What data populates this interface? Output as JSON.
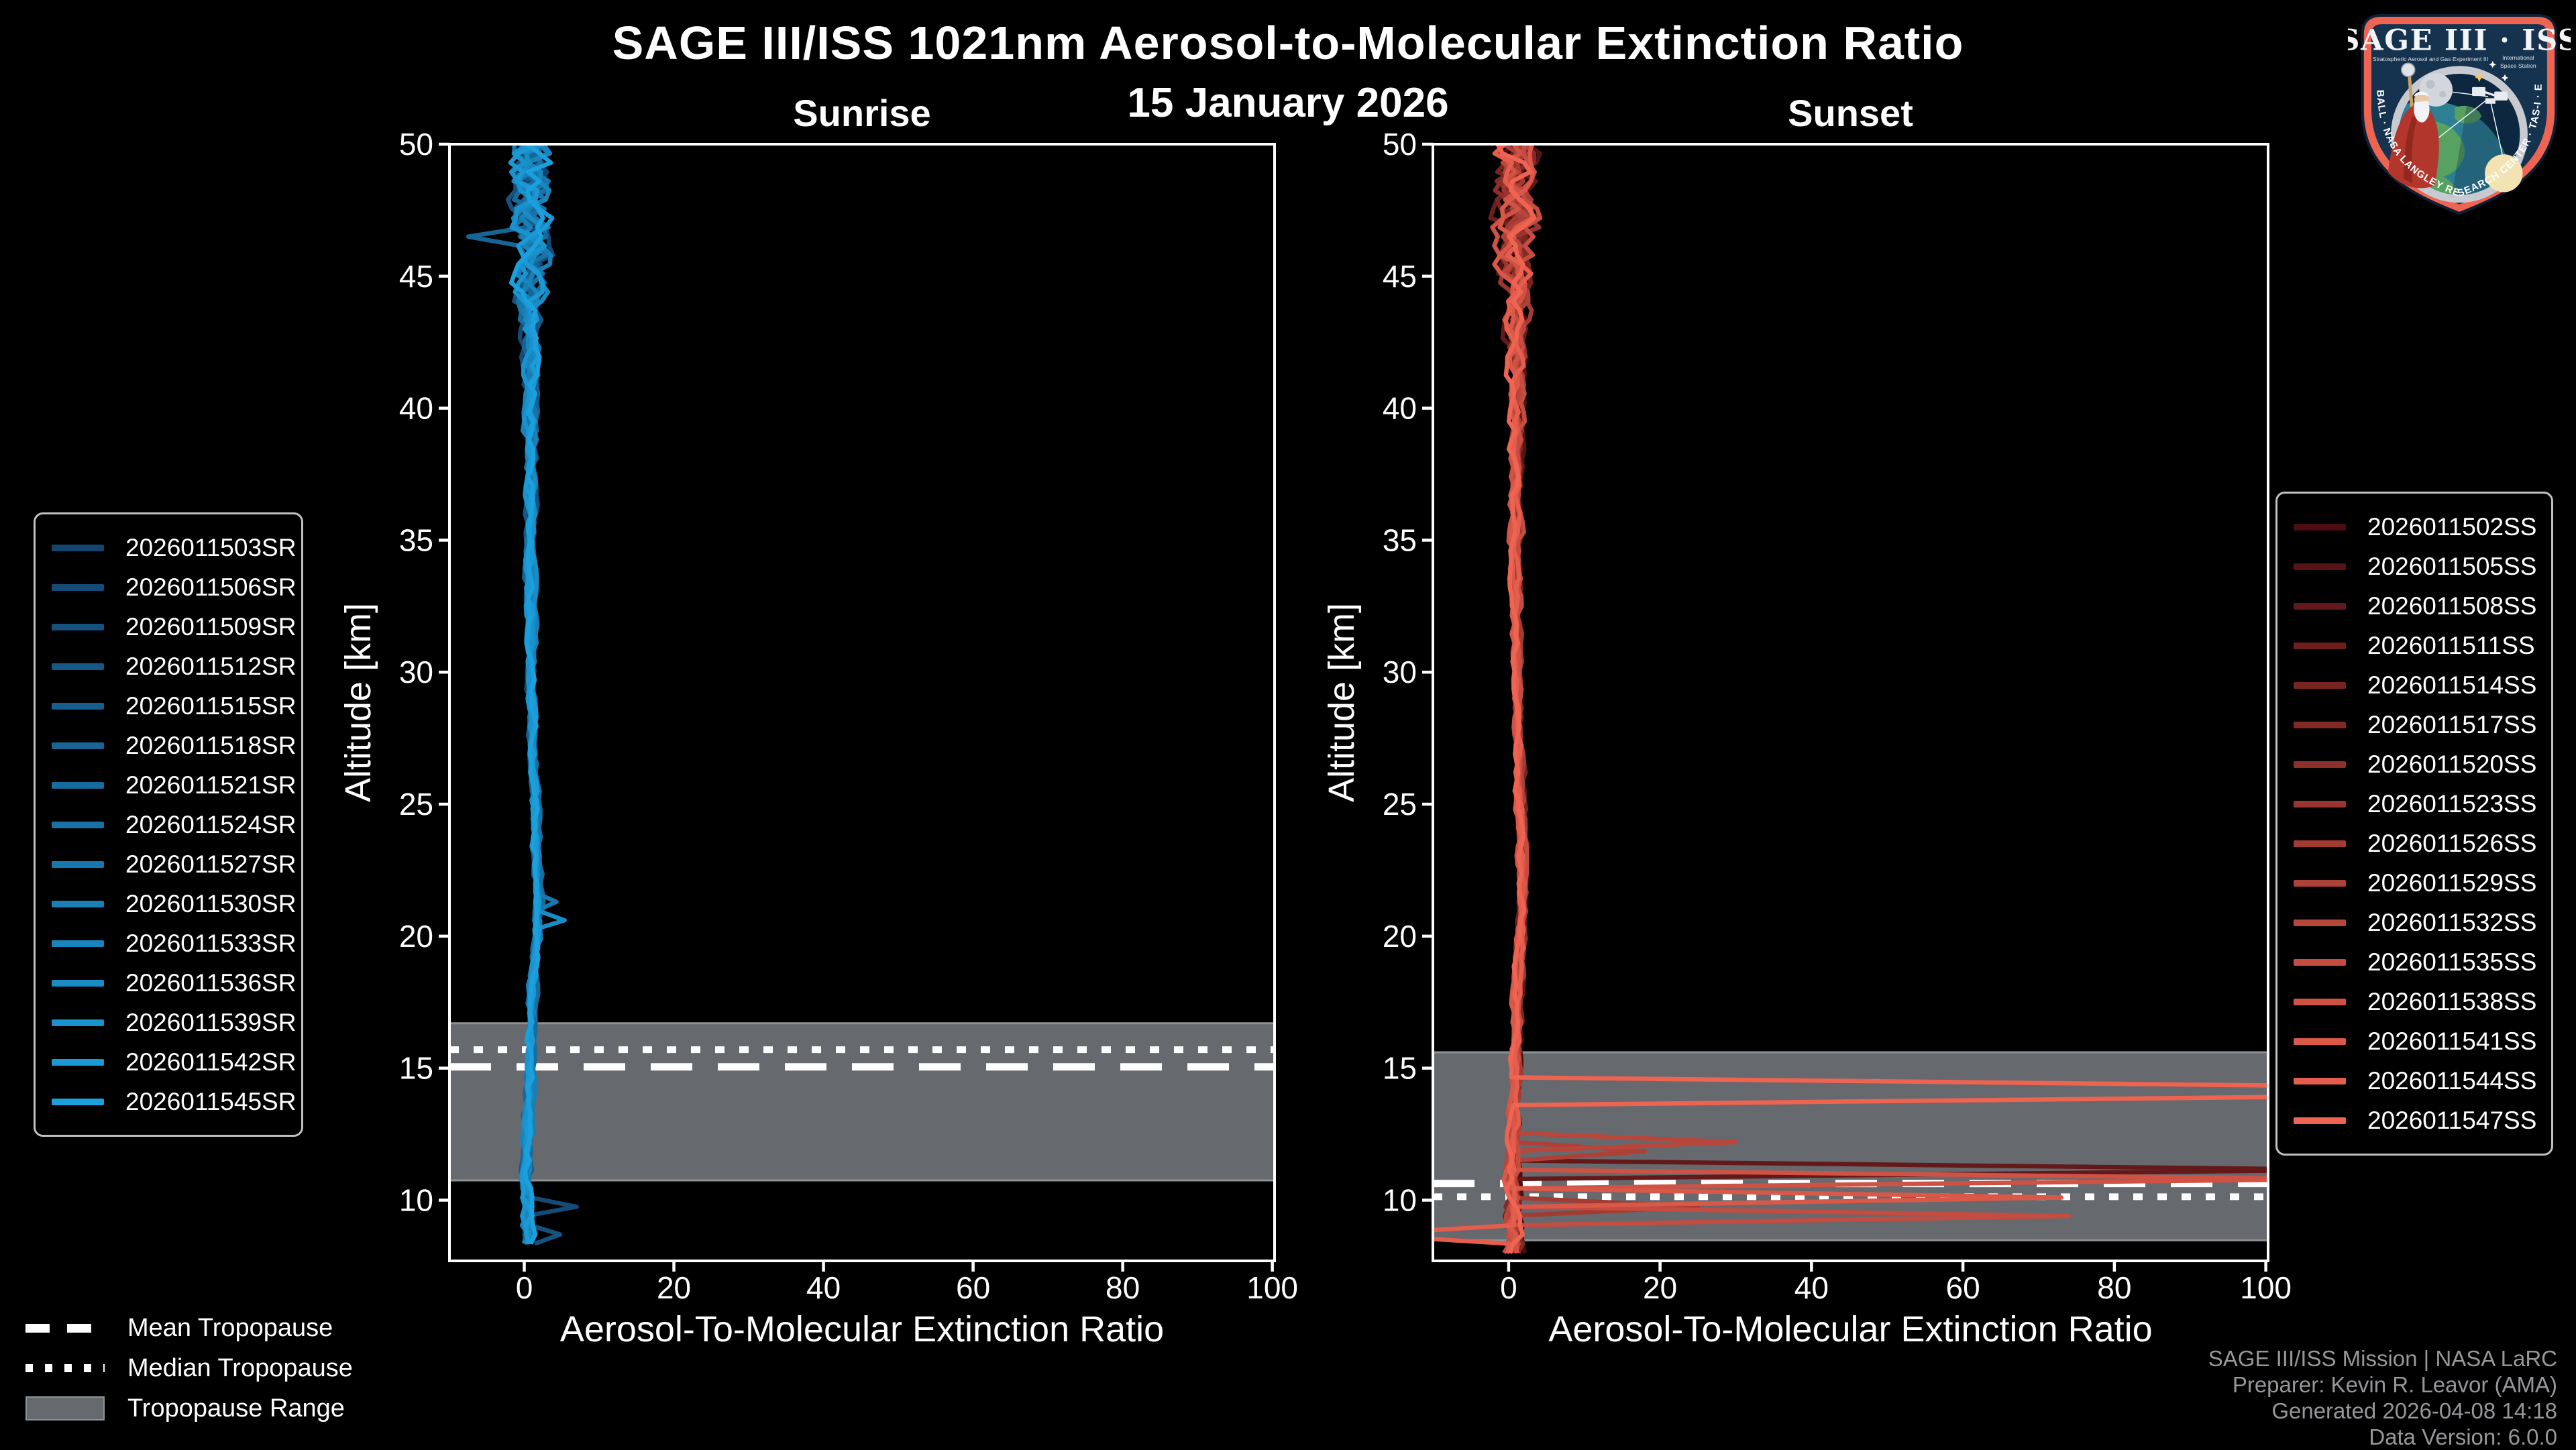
{
  "header": {
    "title": "SAGE III/ISS 1021nm Aerosol-to-Molecular Extinction Ratio",
    "subtitle": "15 January 2026"
  },
  "tropopause_legend": {
    "mean_label": "Mean Tropopause",
    "median_label": "Median Tropopause",
    "range_label": "Tropopause Range"
  },
  "footer": {
    "lines": [
      "SAGE III/ISS Mission | NASA LaRC",
      "Preparer: Kevin R. Leavor (AMA)",
      "Generated 2026-04-08 14:18",
      "Data Version: 6.0.0"
    ]
  },
  "logo": {
    "title": "SAGE III · ISS",
    "sub_left": "Stratospheric Aerosol and Gas Experiment III",
    "sub_right_1": "International",
    "sub_right_2": "Space Station",
    "border_text": "BALL · NASA LANGLEY RESEARCH CENTER · TAS-I · ESA"
  },
  "style": {
    "background": "#000000",
    "text_color": "#ffffff",
    "muted_text": "#95979a",
    "spine_color": "#ffffff",
    "band_color": "#66696e",
    "band_edge": "#8f9295",
    "legend_border": "#c0c1c3"
  },
  "chart_data": [
    {
      "type": "line",
      "title": "Sunrise",
      "xlabel": "Aerosol-To-Molecular Extinction Ratio",
      "ylabel": "Altitude [km]",
      "xlim": [
        -10,
        100.3
      ],
      "ylim": [
        7.7,
        50
      ],
      "xticks": [
        0,
        20,
        40,
        60,
        80,
        100
      ],
      "yticks": [
        10,
        15,
        20,
        25,
        30,
        35,
        40,
        45,
        50
      ],
      "grid": false,
      "legend_position": "left-outside",
      "color_ramp": [
        "#14456e",
        "#1b9fdd"
      ],
      "series": [
        "2026011503SR",
        "2026011506SR",
        "2026011509SR",
        "2026011512SR",
        "2026011515SR",
        "2026011518SR",
        "2026011521SR",
        "2026011524SR",
        "2026011527SR",
        "2026011530SR",
        "2026011533SR",
        "2026011536SR",
        "2026011539SR",
        "2026011542SR",
        "2026011545SR"
      ],
      "alt_min_km": 8.2,
      "tropopause": {
        "mean_km": 15.05,
        "median_km": 15.7,
        "range_km": [
          10.75,
          16.7
        ]
      },
      "profile_ratio_by_alt": [
        [
          8.2,
          0.4
        ],
        [
          9,
          0.5
        ],
        [
          10,
          0.5
        ],
        [
          11,
          0.4
        ],
        [
          12,
          0.45
        ],
        [
          13,
          0.5
        ],
        [
          14,
          0.6
        ],
        [
          15,
          0.7
        ],
        [
          16,
          0.8
        ],
        [
          17,
          0.95
        ],
        [
          18,
          1.1
        ],
        [
          19,
          1.4
        ],
        [
          20,
          1.7
        ],
        [
          21,
          1.9
        ],
        [
          22,
          1.8
        ],
        [
          23,
          1.6
        ],
        [
          24,
          1.5
        ],
        [
          25,
          1.4
        ],
        [
          27,
          1.2
        ],
        [
          30,
          1.0
        ],
        [
          33,
          0.9
        ],
        [
          36,
          0.9
        ],
        [
          39,
          0.9
        ],
        [
          42,
          1.0
        ],
        [
          44,
          1.0
        ],
        [
          46,
          1.0
        ],
        [
          48,
          1.0
        ],
        [
          50,
          1.0
        ]
      ],
      "noise_amp_by_alt": [
        [
          8.2,
          0.8
        ],
        [
          10,
          0.7
        ],
        [
          12,
          0.45
        ],
        [
          20,
          0.45
        ],
        [
          30,
          0.45
        ],
        [
          40,
          0.7
        ],
        [
          43,
          1.1
        ],
        [
          45,
          2.0
        ],
        [
          47,
          2.6
        ],
        [
          50,
          2.8
        ]
      ],
      "anomalies": [
        {
          "series": 1,
          "alt_range": [
            9.55,
            9.95
          ],
          "ratio": 7.0
        },
        {
          "series": 2,
          "alt_range": [
            8.55,
            8.95
          ],
          "ratio": 4.8
        },
        {
          "series": 11,
          "alt_range": [
            20.3,
            20.8
          ],
          "ratio": 5.4
        },
        {
          "series": 8,
          "alt_range": [
            21.0,
            21.4
          ],
          "ratio": 4.3
        },
        {
          "series": 5,
          "alt_range": [
            46.4,
            46.8
          ],
          "ratio": -7.5
        }
      ]
    },
    {
      "type": "line",
      "title": "Sunset",
      "xlabel": "Aerosol-To-Molecular Extinction Ratio",
      "ylabel": "Altitude [km]",
      "xlim": [
        -10,
        100.3
      ],
      "ylim": [
        7.7,
        50
      ],
      "xticks": [
        0,
        20,
        40,
        60,
        80,
        100
      ],
      "yticks": [
        10,
        15,
        20,
        25,
        30,
        35,
        40,
        45,
        50
      ],
      "grid": false,
      "legend_position": "right-outside",
      "color_ramp": [
        "#4d0d10",
        "#ef6351"
      ],
      "series": [
        "2026011502SS",
        "2026011505SS",
        "2026011508SS",
        "2026011511SS",
        "2026011514SS",
        "2026011517SS",
        "2026011520SS",
        "2026011523SS",
        "2026011526SS",
        "2026011529SS",
        "2026011532SS",
        "2026011535SS",
        "2026011538SS",
        "2026011541SS",
        "2026011544SS",
        "2026011547SS"
      ],
      "alt_min_km": 7.9,
      "tropopause": {
        "mean_km": 10.63,
        "median_km": 10.13,
        "range_km": [
          8.48,
          15.6
        ]
      },
      "profile_ratio_by_alt": [
        [
          7.9,
          0.5
        ],
        [
          9,
          0.5
        ],
        [
          10,
          0.5
        ],
        [
          11,
          0.5
        ],
        [
          12,
          0.6
        ],
        [
          13,
          0.7
        ],
        [
          14,
          0.8
        ],
        [
          15,
          0.9
        ],
        [
          16,
          1.0
        ],
        [
          17,
          1.1
        ],
        [
          18,
          1.2
        ],
        [
          19,
          1.4
        ],
        [
          20,
          1.6
        ],
        [
          21,
          1.8
        ],
        [
          22,
          1.9
        ],
        [
          23,
          1.8
        ],
        [
          24,
          1.6
        ],
        [
          25,
          1.5
        ],
        [
          27,
          1.3
        ],
        [
          30,
          1.1
        ],
        [
          33,
          1.0
        ],
        [
          36,
          0.95
        ],
        [
          39,
          1.0
        ],
        [
          42,
          1.0
        ],
        [
          44,
          1.0
        ],
        [
          46,
          1.0
        ],
        [
          48,
          1.0
        ],
        [
          50,
          1.0
        ]
      ],
      "noise_amp_by_alt": [
        [
          7.9,
          1.3
        ],
        [
          9.5,
          1.1
        ],
        [
          12,
          0.5
        ],
        [
          20,
          0.45
        ],
        [
          30,
          0.45
        ],
        [
          40,
          0.7
        ],
        [
          43,
          1.1
        ],
        [
          45,
          2.0
        ],
        [
          47,
          2.6
        ],
        [
          50,
          2.8
        ]
      ],
      "anomalies": [
        {
          "series": 15,
          "alt_range": [
            13.9,
            14.35
          ],
          "ratio": 115
        },
        {
          "series": 2,
          "alt_range": [
            11.05,
            11.45
          ],
          "ratio": 112
        },
        {
          "series": 12,
          "alt_range": [
            10.55,
            10.95
          ],
          "ratio": 110
        },
        {
          "series": 13,
          "alt_range": [
            9.95,
            10.35
          ],
          "ratio": 73
        },
        {
          "series": 11,
          "alt_range": [
            9.25,
            9.65
          ],
          "ratio": 74
        },
        {
          "series": 14,
          "alt_range": [
            8.45,
            8.85
          ],
          "ratio": -20
        },
        {
          "series": 10,
          "alt_range": [
            11.85,
            12.25
          ],
          "ratio": 30
        },
        {
          "series": 9,
          "alt_range": [
            11.5,
            11.85
          ],
          "ratio": 18
        },
        {
          "series": 8,
          "alt_range": [
            9.7,
            10.0
          ],
          "ratio": 25
        }
      ]
    }
  ]
}
